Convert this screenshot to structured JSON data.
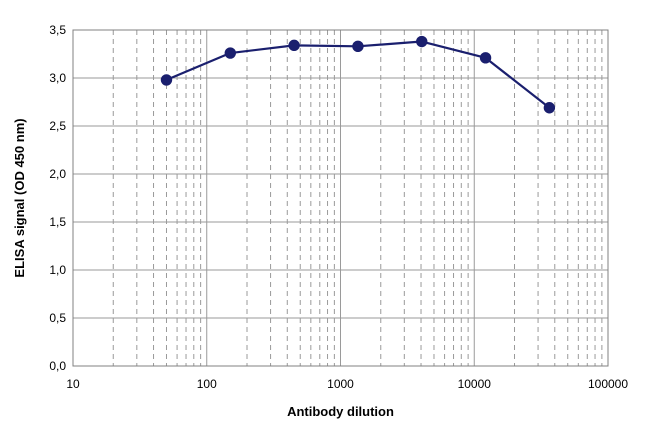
{
  "chart_data": {
    "type": "line",
    "title": "",
    "xlabel": "Antibody dilution",
    "ylabel": "ELISA signal (OD 450 nm)",
    "x_scale": "log",
    "xlim": [
      10,
      100000
    ],
    "ylim": [
      0,
      3.5
    ],
    "grid": true,
    "x_ticks": [
      10,
      100,
      1000,
      10000,
      100000
    ],
    "x_tick_labels": [
      "10",
      "100",
      "1000",
      "10000",
      "100000"
    ],
    "y_ticks": [
      0,
      0.5,
      1.0,
      1.5,
      2.0,
      2.5,
      3.0,
      3.5
    ],
    "y_tick_labels": [
      "0,0",
      "0,5",
      "1,0",
      "1,5",
      "2,0",
      "2,5",
      "3,0",
      "3,5"
    ],
    "series": [
      {
        "color": "#1a1f6e",
        "x": [
          50,
          150,
          450,
          1350,
          4050,
          12150,
          36450
        ],
        "y": [
          2.98,
          3.26,
          3.34,
          3.33,
          3.38,
          3.21,
          2.69
        ]
      }
    ]
  }
}
